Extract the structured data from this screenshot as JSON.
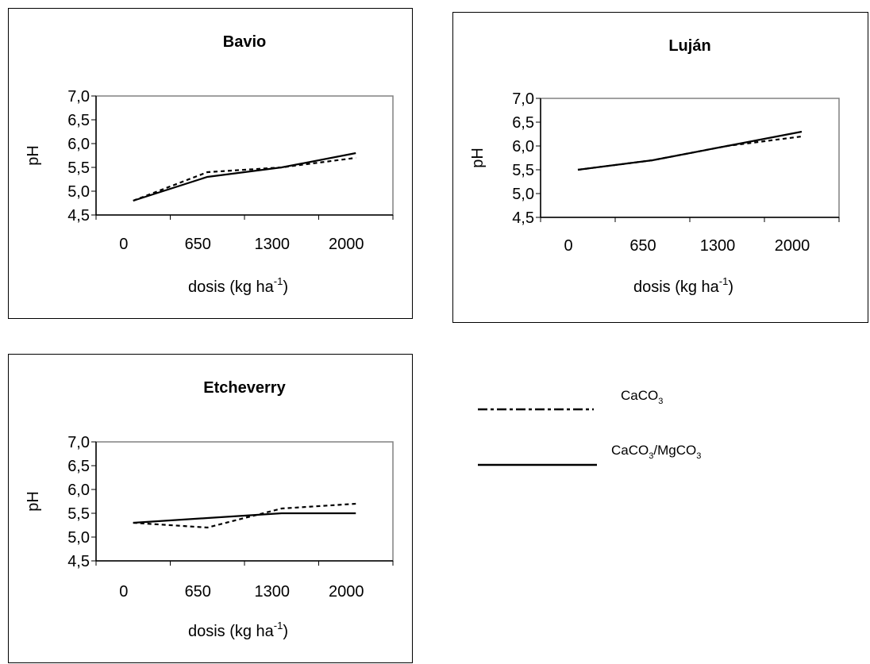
{
  "chart_data": [
    {
      "type": "line",
      "title": "Bavio",
      "categories": [
        "0",
        "650",
        "1300",
        "2000"
      ],
      "ylabel": "pH",
      "xlabel": "dosis (kg ha-1)",
      "ylim": [
        4.5,
        7.0
      ],
      "yticks": [
        "4,5",
        "5,0",
        "5,5",
        "6,0",
        "6,5",
        "7,0"
      ],
      "series": [
        {
          "name": "CaCO3",
          "style": "dashed",
          "values": [
            4.8,
            5.4,
            5.5,
            5.7
          ]
        },
        {
          "name": "CaCO3/MgCO3",
          "style": "solid",
          "values": [
            4.8,
            5.3,
            5.5,
            5.8
          ]
        }
      ]
    },
    {
      "type": "line",
      "title": "Luján",
      "categories": [
        "0",
        "650",
        "1300",
        "2000"
      ],
      "ylabel": "pH",
      "xlabel": "dosis (kg ha-1)",
      "ylim": [
        4.5,
        7.0
      ],
      "yticks": [
        "4,5",
        "5,0",
        "5,5",
        "6,0",
        "6,5",
        "7,0"
      ],
      "series": [
        {
          "name": "CaCO3",
          "style": "dashed",
          "values": [
            5.5,
            5.7,
            6.0,
            6.2
          ]
        },
        {
          "name": "CaCO3/MgCO3",
          "style": "solid",
          "values": [
            5.5,
            5.7,
            6.0,
            6.3
          ]
        }
      ]
    },
    {
      "type": "line",
      "title": "Etcheverry",
      "categories": [
        "0",
        "650",
        "1300",
        "2000"
      ],
      "ylabel": "pH",
      "xlabel": "dosis (kg ha-1)",
      "ylim": [
        4.5,
        7.0
      ],
      "yticks": [
        "4,5",
        "5,0",
        "5,5",
        "6,0",
        "6,5",
        "7,0"
      ],
      "series": [
        {
          "name": "CaCO3",
          "style": "dashed",
          "values": [
            5.3,
            5.2,
            5.6,
            5.7
          ]
        },
        {
          "name": "CaCO3/MgCO3",
          "style": "solid",
          "values": [
            5.3,
            5.4,
            5.5,
            5.5
          ]
        }
      ]
    }
  ],
  "legend": {
    "items": [
      {
        "label_main": "CaCO",
        "label_sub": "3",
        "label_rest": "",
        "style": "dashed"
      },
      {
        "label_main": "CaCO",
        "label_sub": "3",
        "label_rest": "/MgCO",
        "label_sub2": "3",
        "style": "solid"
      }
    ]
  }
}
